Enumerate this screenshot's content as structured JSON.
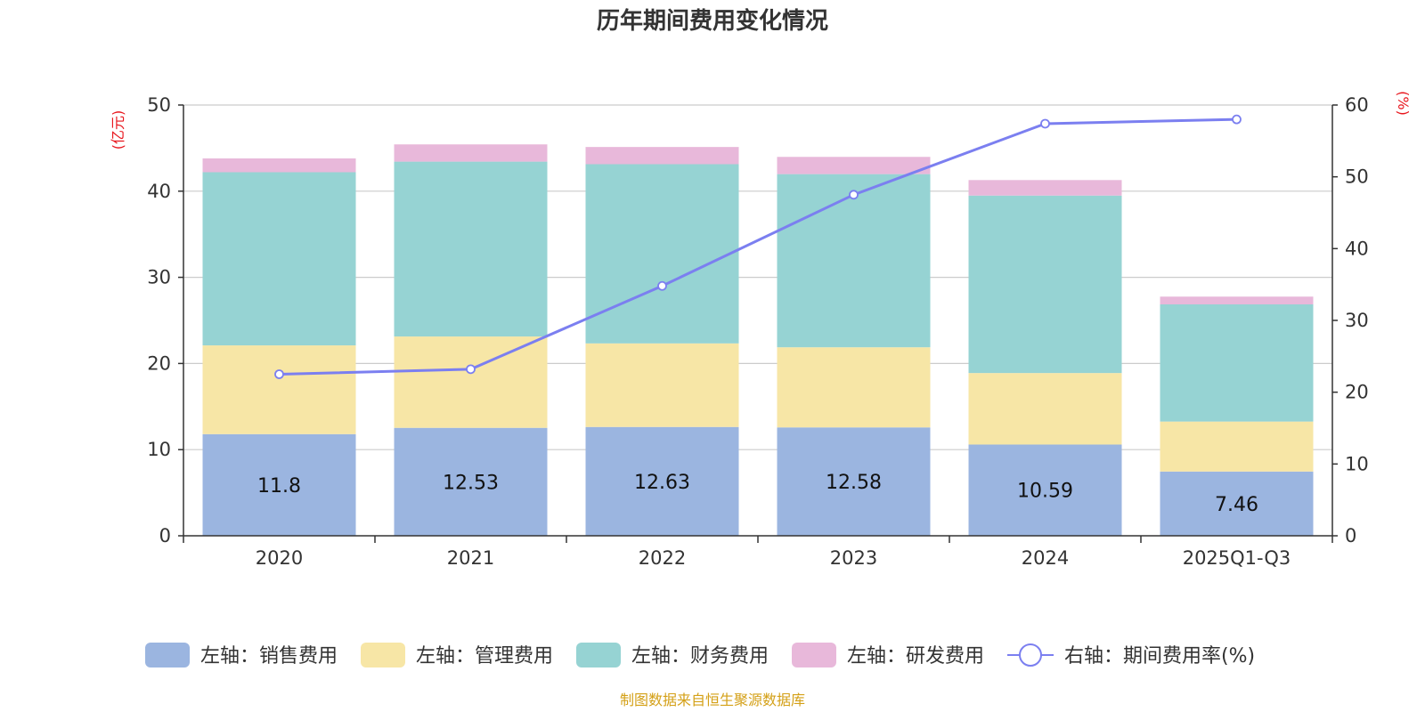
{
  "chart_data": {
    "type": "bar",
    "stacked": true,
    "title": "历年期间费用变化情况",
    "categories": [
      "2020",
      "2021",
      "2022",
      "2023",
      "2024",
      "2025Q1-Q3"
    ],
    "y_left": {
      "unit": "(亿元)",
      "ylim": [
        0,
        50
      ],
      "ticks": [
        0,
        10,
        20,
        30,
        40,
        50
      ]
    },
    "y_right": {
      "unit": "(%)",
      "ylim": [
        0,
        60
      ],
      "ticks": [
        0,
        10,
        20,
        30,
        40,
        50,
        60
      ]
    },
    "series": [
      {
        "name": "左轴：销售费用",
        "type": "bar",
        "axis": "left",
        "color": "#9bb5e0",
        "values": [
          11.8,
          12.53,
          12.63,
          12.58,
          10.59,
          7.46
        ],
        "show_labels": true
      },
      {
        "name": "左轴：管理费用",
        "type": "bar",
        "axis": "left",
        "color": "#f7e6a6",
        "values": [
          10.3,
          10.6,
          9.7,
          9.3,
          8.3,
          5.8
        ],
        "show_labels": false
      },
      {
        "name": "左轴：财务费用",
        "type": "bar",
        "axis": "left",
        "color": "#96d3d3",
        "values": [
          20.1,
          20.3,
          20.8,
          20.1,
          20.6,
          13.6
        ],
        "show_labels": false
      },
      {
        "name": "左轴：研发费用",
        "type": "bar",
        "axis": "left",
        "color": "#e8b8da",
        "values": [
          1.6,
          2.0,
          2.0,
          2.0,
          1.8,
          0.9
        ],
        "show_labels": false
      },
      {
        "name": "右轴：期间费用率(%)",
        "type": "line",
        "axis": "right",
        "color": "#7b7ff0",
        "values": [
          22.5,
          23.2,
          34.8,
          47.5,
          57.4,
          58.0
        ]
      }
    ],
    "grid": true,
    "legend_position": "bottom"
  },
  "footer": {
    "source": "制图数据来自恒生聚源数据库"
  }
}
